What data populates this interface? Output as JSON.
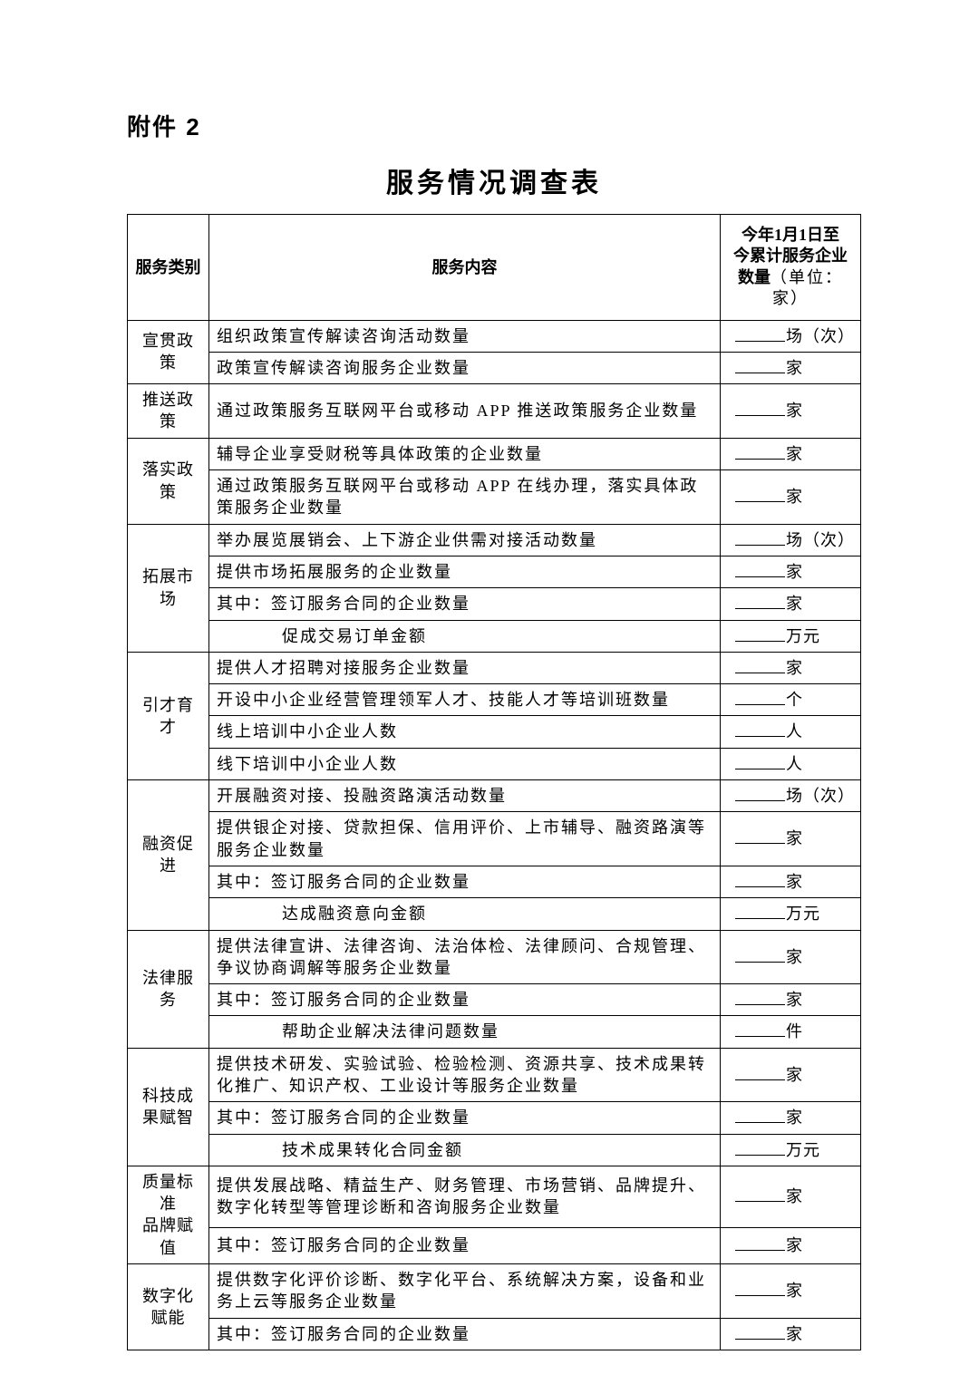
{
  "attachment_label": "附件 2",
  "page_title": "服务情况调查表",
  "header": {
    "col_category": "服务类别",
    "col_content": "服务内容",
    "col_qty_line1": "今年1月1日至",
    "col_qty_line2": "今累计服务企业",
    "col_qty_line3_bold": "数量",
    "col_qty_line3_rest": "（单位：家）"
  },
  "units": {
    "changci": "场（次）",
    "jia": "家",
    "ge": "个",
    "ren": "人",
    "wanyuan": "万元",
    "jian": "件"
  },
  "sections": [
    {
      "category": "宣贯政策",
      "rows": [
        {
          "content": "组织政策宣传解读咨询活动数量",
          "unit": "changci"
        },
        {
          "content": "政策宣传解读咨询服务企业数量",
          "unit": "jia"
        }
      ]
    },
    {
      "category": "推送政策",
      "rows": [
        {
          "content": "通过政策服务互联网平台或移动 APP 推送政策服务企业数量",
          "unit": "jia"
        }
      ]
    },
    {
      "category": "落实政策",
      "rows": [
        {
          "content": "辅导企业享受财税等具体政策的企业数量",
          "unit": "jia"
        },
        {
          "content": "通过政策服务互联网平台或移动 APP 在线办理，落实具体政策服务企业数量",
          "unit": "jia"
        }
      ]
    },
    {
      "category": "拓展市场",
      "rows": [
        {
          "content": "举办展览展销会、上下游企业供需对接活动数量",
          "unit": "changci"
        },
        {
          "content": "提供市场拓展服务的企业数量",
          "unit": "jia"
        },
        {
          "content": "其中：签订服务合同的企业数量",
          "unit": "jia"
        },
        {
          "content": "促成交易订单金额",
          "unit": "wanyuan",
          "indent": 2
        }
      ]
    },
    {
      "category": "引才育才",
      "rows": [
        {
          "content": "提供人才招聘对接服务企业数量",
          "unit": "jia"
        },
        {
          "content": "开设中小企业经营管理领军人才、技能人才等培训班数量",
          "unit": "ge"
        },
        {
          "content": "线上培训中小企业人数",
          "unit": "ren"
        },
        {
          "content": "线下培训中小企业人数",
          "unit": "ren"
        }
      ]
    },
    {
      "category": "融资促进",
      "rows": [
        {
          "content": "开展融资对接、投融资路演活动数量",
          "unit": "changci"
        },
        {
          "content": "提供银企对接、贷款担保、信用评价、上市辅导、融资路演等服务企业数量",
          "unit": "jia"
        },
        {
          "content": "其中：签订服务合同的企业数量",
          "unit": "jia"
        },
        {
          "content": "达成融资意向金额",
          "unit": "wanyuan",
          "indent": 2
        }
      ]
    },
    {
      "category": "法律服务",
      "rows": [
        {
          "content": "提供法律宣讲、法律咨询、法治体检、法律顾问、合规管理、争议协商调解等服务企业数量",
          "unit": "jia"
        },
        {
          "content": "其中：签订服务合同的企业数量",
          "unit": "jia"
        },
        {
          "content": "帮助企业解决法律问题数量",
          "unit": "jian",
          "indent": 2
        }
      ]
    },
    {
      "category": "科技成果赋智",
      "rows": [
        {
          "content": "提供技术研发、实验试验、检验检测、资源共享、技术成果转化推广、知识产权、工业设计等服务企业数量",
          "unit": "jia"
        },
        {
          "content": "其中：签订服务合同的企业数量",
          "unit": "jia"
        },
        {
          "content": "技术成果转化合同金额",
          "unit": "wanyuan",
          "indent": 2
        }
      ]
    },
    {
      "category": "质量标准品牌赋值",
      "rows": [
        {
          "content": "提供发展战略、精益生产、财务管理、市场营销、品牌提升、数字化转型等管理诊断和咨询服务企业数量",
          "unit": "jia"
        },
        {
          "content": "其中：签订服务合同的企业数量",
          "unit": "jia"
        }
      ]
    },
    {
      "category": "数字化赋能",
      "rows": [
        {
          "content": "提供数字化评价诊断、数字化平台、系统解决方案，设备和业务上云等服务企业数量",
          "unit": "jia"
        },
        {
          "content": "其中：签订服务合同的企业数量",
          "unit": "jia"
        }
      ]
    }
  ]
}
